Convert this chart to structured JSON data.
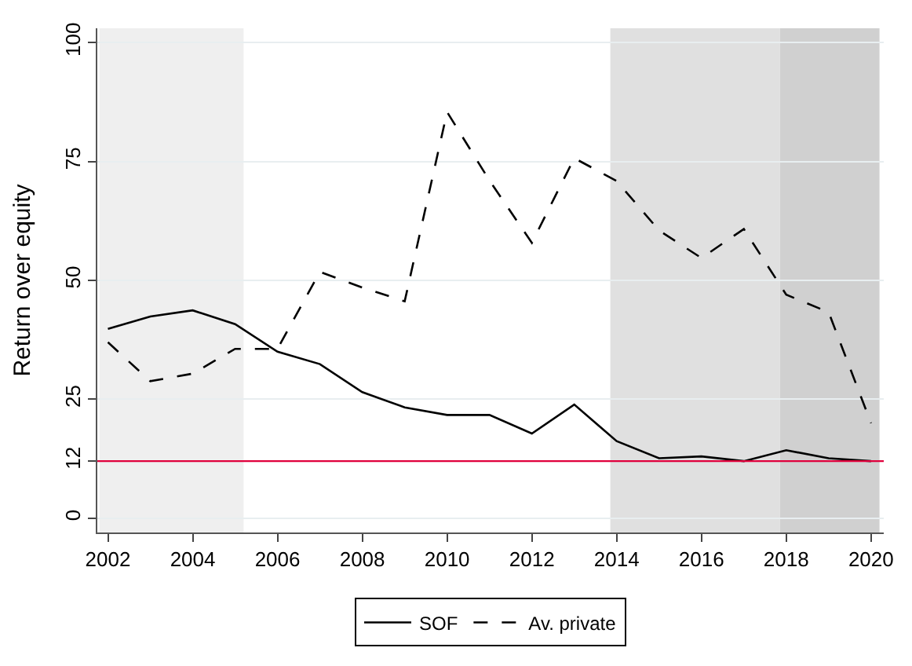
{
  "chart_data": {
    "type": "line",
    "ylabel": "Return over equity",
    "x": [
      2002,
      2003,
      2004,
      2005,
      2006,
      2007,
      2008,
      2009,
      2010,
      2011,
      2012,
      2013,
      2014,
      2015,
      2016,
      2017,
      2018,
      2019,
      2020
    ],
    "series": [
      {
        "name": "SOF",
        "color": "#000000",
        "line_style": "solid",
        "values": [
          39.8,
          42.4,
          43.7,
          40.8,
          35,
          32.4,
          26.5,
          23.3,
          21.7,
          21.7,
          17.8,
          23.9,
          16.2,
          12.6,
          13,
          12,
          14.3,
          12.6,
          12
        ]
      },
      {
        "name": "Av. private",
        "color": "#000000",
        "line_style": "dashed",
        "values": [
          37,
          28.8,
          30.4,
          35.6,
          35.6,
          51.8,
          48.5,
          45.6,
          85.4,
          71,
          57.9,
          75.7,
          70.9,
          60.5,
          54.7,
          60.8,
          47,
          43.3,
          20
        ]
      }
    ],
    "xlim": [
      2001.75,
      2020.3
    ],
    "xticks": [
      2002,
      2004,
      2006,
      2008,
      2010,
      2012,
      2014,
      2016,
      2018,
      2020
    ],
    "ylim": [
      -3,
      103
    ],
    "yticks": [
      0,
      12,
      25,
      50,
      75,
      100
    ],
    "grid": "y",
    "legend": "bottom",
    "marker": "none",
    "ref_lines": [
      {
        "axis": "y",
        "value": 12,
        "color": "#e0003c"
      }
    ],
    "bands": [
      {
        "axis": "x",
        "from": 2001.8,
        "to": 2005.2,
        "color": "#efefef"
      },
      {
        "axis": "x",
        "from": 2013.85,
        "to": 2017.85,
        "color": "#e0e0e0"
      },
      {
        "axis": "x",
        "from": 2017.85,
        "to": 2020.2,
        "color": "#d0d0d0"
      }
    ]
  }
}
